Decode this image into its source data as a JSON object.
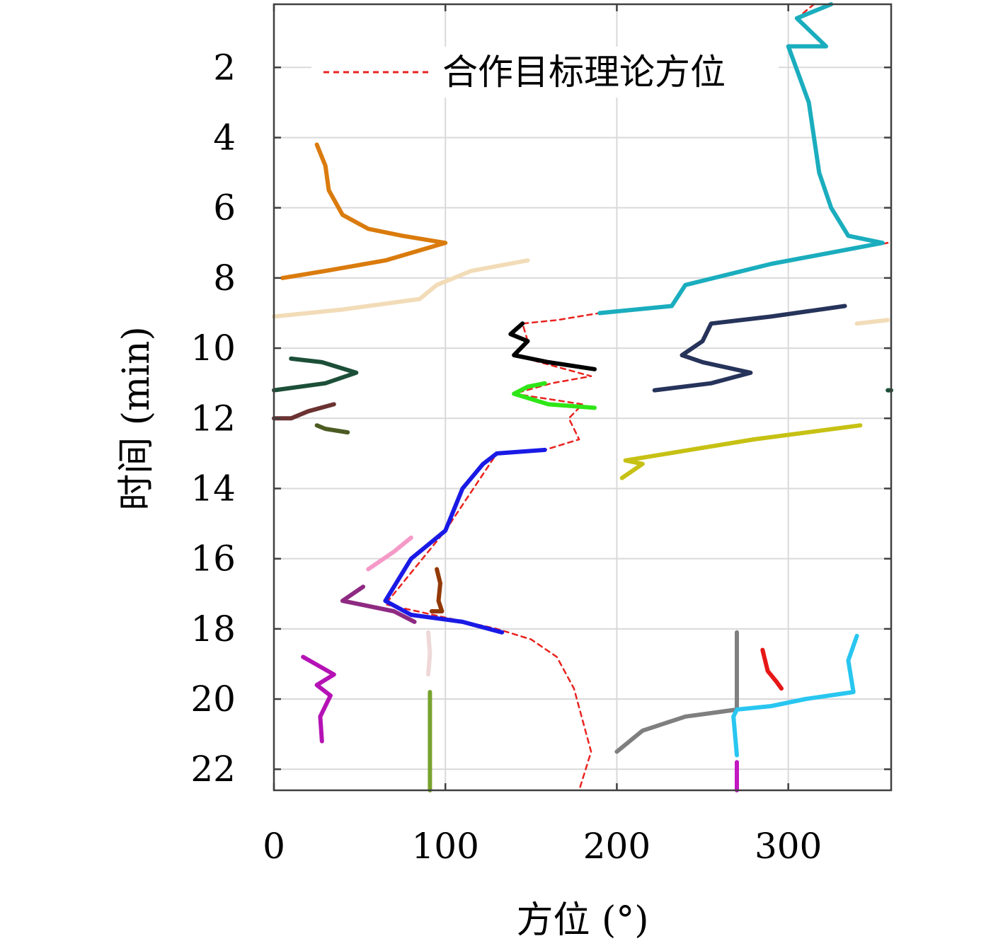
{
  "chart_data": {
    "type": "line",
    "xlabel": "方位 (°)",
    "ylabel": "时间 (min)",
    "xlim": [
      0,
      360
    ],
    "ylim": [
      22.6,
      0.2
    ],
    "y_inverted": true,
    "grid": true,
    "legend_placement": "top",
    "x_ticks": [
      0,
      100,
      200,
      300
    ],
    "y_ticks": [
      2,
      4,
      6,
      8,
      10,
      12,
      14,
      16,
      18,
      20,
      22
    ],
    "x_tick_labels": [
      "0",
      "100",
      "200",
      "300"
    ],
    "y_tick_labels": [
      "2",
      "4",
      "6",
      "8",
      "10",
      "12",
      "14",
      "16",
      "18",
      "20",
      "22"
    ],
    "legend": [
      {
        "label": "合作目标理论方位",
        "color": "#e8231f",
        "style": "dashed"
      }
    ],
    "series": [
      {
        "name": "合作目标理论方位",
        "color": "#e8231f",
        "style": "dashed",
        "points": [
          [
            315,
            0.2
          ],
          [
            305,
            0.6
          ],
          [
            322,
            1.4
          ],
          [
            300,
            1.4
          ],
          [
            312,
            3.0
          ],
          [
            318,
            5.0
          ],
          [
            325,
            6.0
          ],
          [
            335,
            6.8
          ],
          [
            358,
            7.0
          ],
          [
            290,
            7.6
          ],
          [
            240,
            8.2
          ],
          [
            232,
            8.8
          ],
          [
            190,
            9.0
          ],
          [
            165,
            9.2
          ],
          [
            145,
            9.3
          ],
          [
            148,
            9.8
          ],
          [
            140,
            10.2
          ],
          [
            185,
            10.8
          ],
          [
            162,
            11.0
          ],
          [
            140,
            11.3
          ],
          [
            180,
            11.6
          ],
          [
            172,
            12.0
          ],
          [
            178,
            12.6
          ],
          [
            158,
            12.9
          ],
          [
            130,
            13.0
          ],
          [
            100,
            15.2
          ],
          [
            65,
            17.3
          ],
          [
            130,
            18.0
          ],
          [
            150,
            18.3
          ],
          [
            165,
            18.8
          ],
          [
            175,
            19.7
          ],
          [
            185,
            21.5
          ],
          [
            178,
            22.6
          ]
        ]
      },
      {
        "color": "#1aadbe",
        "style": "solid",
        "points": [
          [
            325,
            0.2
          ],
          [
            305,
            0.6
          ],
          [
            322,
            1.4
          ],
          [
            300,
            1.4
          ],
          [
            312,
            3.0
          ],
          [
            318,
            5.0
          ],
          [
            325,
            6.0
          ],
          [
            335,
            6.8
          ],
          [
            355,
            7.0
          ],
          [
            290,
            7.6
          ],
          [
            240,
            8.2
          ],
          [
            232,
            8.8
          ],
          [
            190,
            9.0
          ]
        ]
      },
      {
        "color": "#da7b0d",
        "style": "solid",
        "points": [
          [
            25,
            4.2
          ],
          [
            30,
            4.8
          ],
          [
            32,
            5.5
          ],
          [
            40,
            6.2
          ],
          [
            55,
            6.6
          ],
          [
            75,
            6.8
          ],
          [
            100,
            7.0
          ],
          [
            65,
            7.5
          ],
          [
            30,
            7.8
          ],
          [
            5,
            8.0
          ]
        ]
      },
      {
        "color": "#f2dcb8",
        "style": "solid",
        "points": [
          [
            148,
            7.5
          ],
          [
            115,
            7.8
          ],
          [
            95,
            8.2
          ],
          [
            85,
            8.6
          ],
          [
            40,
            8.9
          ],
          [
            0,
            9.1
          ]
        ]
      },
      {
        "color": "#f2dcb8",
        "style": "solid",
        "points": [
          [
            358,
            9.2
          ],
          [
            340,
            9.3
          ]
        ]
      },
      {
        "color": "#000000",
        "style": "solid",
        "points": [
          [
            145,
            9.3
          ],
          [
            138,
            9.6
          ],
          [
            148,
            9.8
          ],
          [
            140,
            10.2
          ],
          [
            160,
            10.4
          ],
          [
            187,
            10.6
          ]
        ]
      },
      {
        "color": "#26335a",
        "style": "solid",
        "points": [
          [
            333,
            8.8
          ],
          [
            290,
            9.1
          ],
          [
            255,
            9.3
          ],
          [
            250,
            9.8
          ],
          [
            238,
            10.2
          ],
          [
            250,
            10.4
          ],
          [
            278,
            10.7
          ],
          [
            255,
            11.0
          ],
          [
            222,
            11.2
          ]
        ]
      },
      {
        "color": "#1c4f38",
        "style": "solid",
        "points": [
          [
            10,
            10.3
          ],
          [
            28,
            10.4
          ],
          [
            48,
            10.7
          ],
          [
            30,
            11.0
          ],
          [
            0,
            11.2
          ]
        ]
      },
      {
        "color": "#2ee617",
        "style": "solid",
        "points": [
          [
            158,
            11.0
          ],
          [
            148,
            11.1
          ],
          [
            140,
            11.3
          ],
          [
            160,
            11.6
          ],
          [
            187,
            11.7
          ]
        ]
      },
      {
        "color": "#6b3232",
        "style": "solid",
        "points": [
          [
            35,
            11.6
          ],
          [
            20,
            11.8
          ],
          [
            10,
            12.0
          ],
          [
            0,
            12.0
          ]
        ]
      },
      {
        "color": "#4c5b22",
        "style": "solid",
        "points": [
          [
            25,
            12.2
          ],
          [
            30,
            12.3
          ],
          [
            43,
            12.4
          ]
        ]
      },
      {
        "color": "#c6c113",
        "style": "solid",
        "points": [
          [
            342,
            12.2
          ],
          [
            280,
            12.6
          ],
          [
            230,
            13.0
          ],
          [
            205,
            13.2
          ],
          [
            215,
            13.3
          ],
          [
            203,
            13.7
          ]
        ]
      },
      {
        "color": "#1a1ae6",
        "style": "solid",
        "points": [
          [
            158,
            12.9
          ],
          [
            130,
            13.0
          ],
          [
            122,
            13.3
          ],
          [
            110,
            14.0
          ],
          [
            100,
            15.2
          ],
          [
            80,
            16.0
          ],
          [
            65,
            17.2
          ],
          [
            80,
            17.6
          ],
          [
            110,
            17.8
          ],
          [
            133,
            18.1
          ]
        ]
      },
      {
        "color": "#f59ac8",
        "style": "solid",
        "points": [
          [
            80,
            15.4
          ],
          [
            70,
            15.8
          ],
          [
            58,
            16.2
          ],
          [
            55,
            16.3
          ]
        ]
      },
      {
        "color": "#8e2a82",
        "style": "solid",
        "points": [
          [
            52,
            16.8
          ],
          [
            40,
            17.2
          ],
          [
            50,
            17.3
          ],
          [
            70,
            17.5
          ],
          [
            82,
            17.8
          ]
        ]
      },
      {
        "color": "#923804",
        "style": "solid",
        "points": [
          [
            95,
            16.3
          ],
          [
            97,
            16.7
          ],
          [
            96,
            17.2
          ],
          [
            98,
            17.5
          ],
          [
            92,
            17.5
          ]
        ]
      },
      {
        "color": "#efd8d8",
        "style": "solid",
        "points": [
          [
            90,
            18.1
          ],
          [
            91,
            18.7
          ],
          [
            90,
            19.3
          ]
        ]
      },
      {
        "color": "#b512b5",
        "style": "solid",
        "points": [
          [
            17,
            18.8
          ],
          [
            35,
            19.3
          ],
          [
            25,
            19.6
          ],
          [
            33,
            19.9
          ],
          [
            27,
            20.5
          ],
          [
            28,
            21.2
          ]
        ]
      },
      {
        "color": "#78a32e",
        "style": "solid",
        "points": [
          [
            91,
            19.8
          ],
          [
            91,
            22.6
          ]
        ]
      },
      {
        "color": "#7f7f7f",
        "style": "solid",
        "points": [
          [
            270,
            18.1
          ],
          [
            270,
            20.3
          ],
          [
            240,
            20.5
          ],
          [
            215,
            20.9
          ],
          [
            200,
            21.5
          ]
        ]
      },
      {
        "color": "#e81717",
        "style": "solid",
        "points": [
          [
            285,
            18.6
          ],
          [
            288,
            19.2
          ],
          [
            293,
            19.5
          ],
          [
            296,
            19.7
          ]
        ]
      },
      {
        "color": "#28c6f0",
        "style": "solid",
        "points": [
          [
            340,
            18.2
          ],
          [
            335,
            18.9
          ],
          [
            338,
            19.8
          ],
          [
            310,
            20.0
          ],
          [
            290,
            20.2
          ],
          [
            270,
            20.3
          ],
          [
            268,
            20.5
          ],
          [
            270,
            21.6
          ]
        ]
      },
      {
        "color": "#c118c1",
        "style": "solid",
        "points": [
          [
            270,
            21.8
          ],
          [
            270,
            22.6
          ]
        ]
      },
      {
        "color": "#1c4f38",
        "style": "solid",
        "points": [
          [
            358,
            11.2
          ],
          [
            360,
            11.2
          ]
        ]
      }
    ]
  }
}
